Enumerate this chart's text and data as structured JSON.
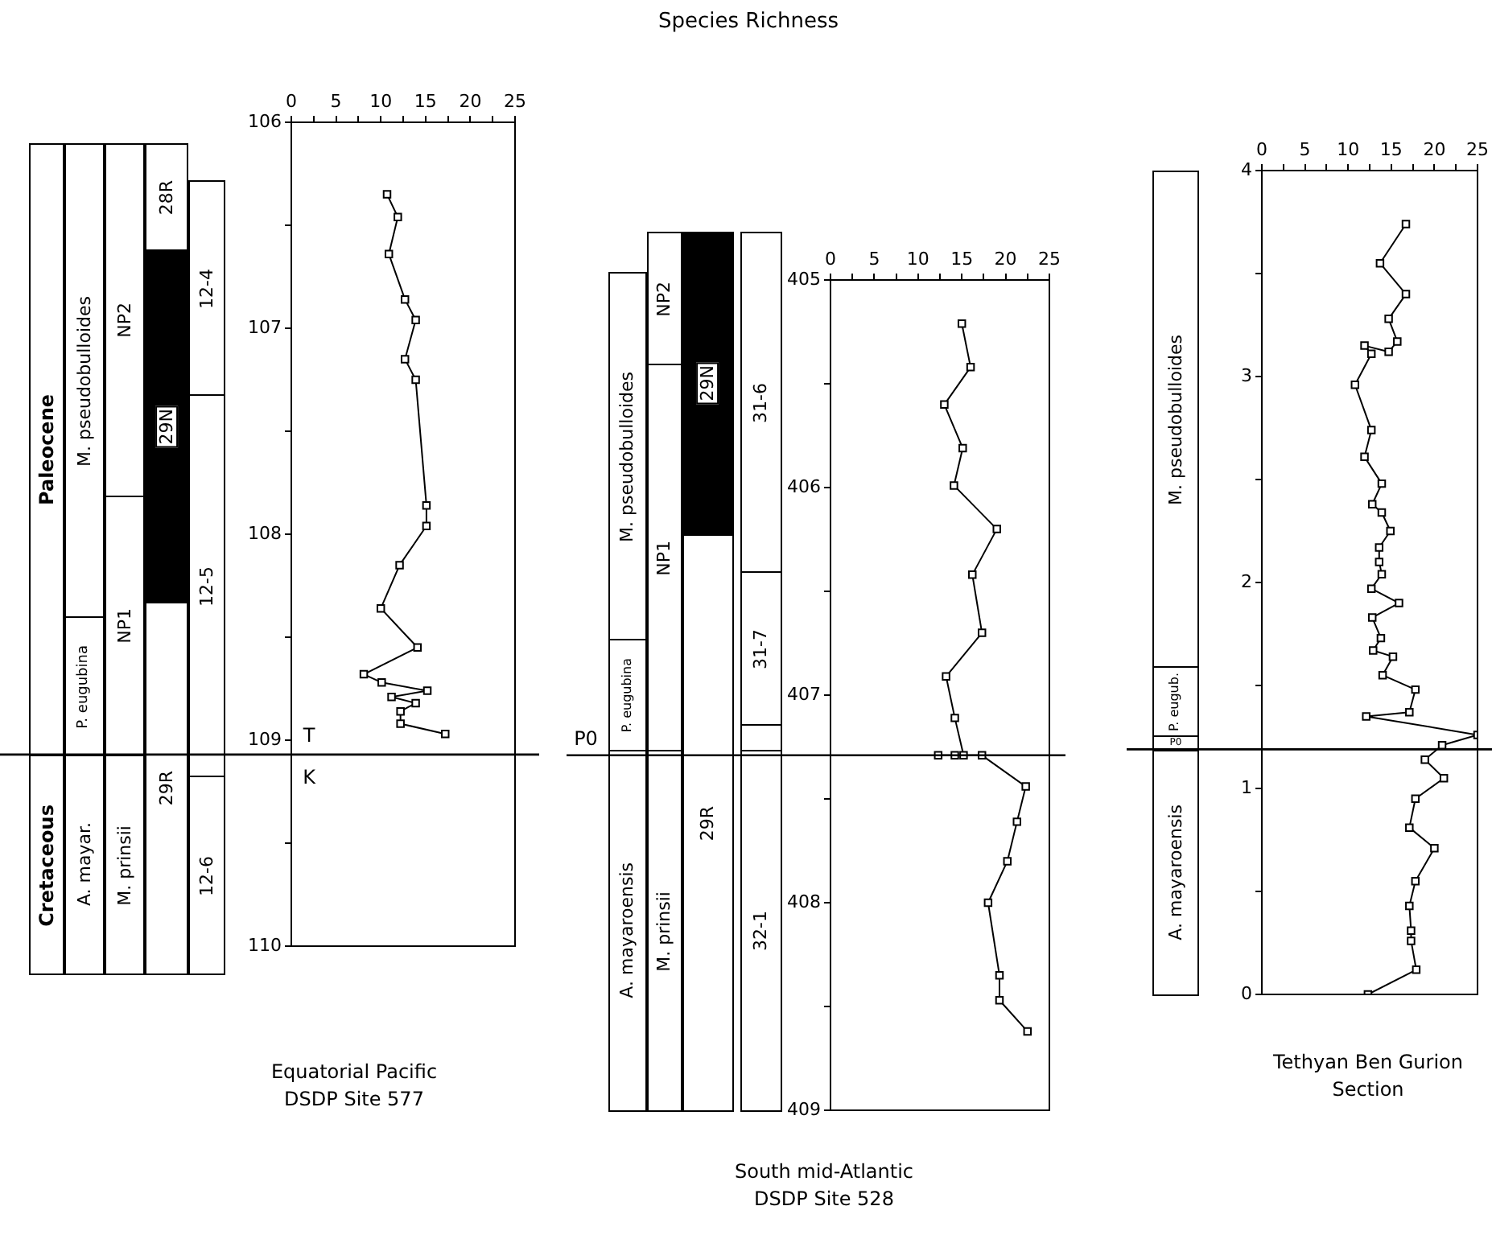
{
  "chart_data": [
    {
      "type": "line",
      "color": "#000000",
      "marker": "square",
      "line_style": "solid",
      "x": [
        10.7,
        11.9,
        10.9,
        12.7,
        13.9,
        12.7,
        13.9,
        15.1,
        15.1,
        12.1,
        10.0,
        14.1,
        8.1,
        10.1,
        15.2,
        11.2,
        13.9,
        12.2,
        12.2,
        17.2
      ],
      "values": [
        106.35,
        106.46,
        106.64,
        106.86,
        106.96,
        107.15,
        107.25,
        107.86,
        107.96,
        108.15,
        108.36,
        108.55,
        108.68,
        108.72,
        108.76,
        108.79,
        108.82,
        108.86,
        108.92,
        108.97
      ],
      "xlim": [
        0,
        25
      ],
      "xticks": [
        0,
        {
          "value": 2.5,
          "label": null
        },
        5,
        {
          "value": 7.5,
          "label": null
        },
        10,
        {
          "value": 12.5,
          "label": null
        },
        15,
        {
          "value": 17.5,
          "label": null
        },
        20,
        {
          "value": 22.5,
          "label": null
        },
        25
      ],
      "ylim": [
        110,
        106
      ],
      "yticks": [
        106,
        {
          "value": 106.5,
          "label": null
        },
        107,
        {
          "value": 107.5,
          "label": null
        },
        108,
        {
          "value": 108.5,
          "label": null
        },
        109,
        {
          "value": 109.5,
          "label": null
        },
        110
      ],
      "ref_lines": [
        {
          "axis": "y",
          "value": 109.07
        }
      ],
      "annotations": [
        "Paleocene",
        "Cretaceous",
        "M. pseudobulloides",
        "P. eugubina",
        "A. mayar.",
        "NP2",
        "NP1",
        "M. prinsii",
        "28R",
        "29N",
        "29R",
        "12-4",
        "12-5",
        "12-6",
        "T",
        "K",
        "Equatorial Pacific",
        "DSDP Site 577"
      ]
    },
    {
      "type": "line",
      "title": "Species Richness",
      "color": "#000000",
      "marker": "square",
      "line_style": "solid",
      "x": [
        15.0,
        16.0,
        13.0,
        15.1,
        14.1,
        19.0,
        16.2,
        17.3,
        13.2,
        14.2,
        15.2,
        12.3,
        14.2,
        17.3,
        22.3,
        21.3,
        20.2,
        18.0,
        19.3,
        19.3,
        22.5
      ],
      "values": [
        405.21,
        405.42,
        405.6,
        405.81,
        405.99,
        406.2,
        406.42,
        406.7,
        406.91,
        407.11,
        407.29,
        407.29,
        407.29,
        407.29,
        407.44,
        407.61,
        407.8,
        408.0,
        408.35,
        408.47,
        408.62
      ],
      "xlim": [
        0,
        25
      ],
      "xticks": [
        0,
        {
          "value": 2.5,
          "label": null
        },
        5,
        {
          "value": 7.5,
          "label": null
        },
        10,
        {
          "value": 12.5,
          "label": null
        },
        15,
        {
          "value": 17.5,
          "label": null
        },
        20,
        {
          "value": 22.5,
          "label": null
        },
        25
      ],
      "ylim": [
        409,
        405
      ],
      "yticks": [
        405,
        {
          "value": 405.5,
          "label": null
        },
        406,
        {
          "value": 406.5,
          "label": null
        },
        407,
        {
          "value": 407.5,
          "label": null
        },
        408,
        {
          "value": 408.5,
          "label": null
        },
        409
      ],
      "ref_lines": [
        {
          "axis": "y",
          "value": 407.29
        }
      ],
      "annotations": [
        "M. pseudobulloides",
        "P. eugubina",
        "A. mayaroensis",
        "NP2",
        "NP1",
        "M. prinsii",
        "29N",
        "29R",
        "31-6",
        "31-7",
        "32-1",
        "P0",
        "South mid-Atlantic",
        "DSDP Site 528"
      ]
    },
    {
      "type": "line",
      "color": "#000000",
      "marker": "square",
      "line_style": "solid",
      "x": [
        16.7,
        13.7,
        16.7,
        14.7,
        15.7,
        14.7,
        11.9,
        12.7,
        10.8,
        12.7,
        11.9,
        13.9,
        12.8,
        13.9,
        14.9,
        13.6,
        13.6,
        13.9,
        12.7,
        15.9,
        12.8,
        13.8,
        12.9,
        15.2,
        14.0,
        17.8,
        17.1,
        12.1,
        25.0,
        20.9,
        18.9,
        21.1,
        17.8,
        17.1,
        20.0,
        17.8,
        17.1,
        17.3,
        17.3,
        17.9,
        12.3
      ],
      "values": [
        3.74,
        3.55,
        3.4,
        3.28,
        3.17,
        3.12,
        3.15,
        3.11,
        2.96,
        2.74,
        2.61,
        2.48,
        2.38,
        2.34,
        2.25,
        2.17,
        2.1,
        2.04,
        1.97,
        1.9,
        1.83,
        1.73,
        1.67,
        1.64,
        1.55,
        1.48,
        1.37,
        1.35,
        1.26,
        1.21,
        1.14,
        1.05,
        0.95,
        0.81,
        0.71,
        0.55,
        0.43,
        0.31,
        0.26,
        0.12,
        0.0
      ],
      "xlim": [
        0,
        25
      ],
      "xticks": [
        0,
        {
          "value": 2.5,
          "label": null
        },
        5,
        {
          "value": 7.5,
          "label": null
        },
        10,
        {
          "value": 12.5,
          "label": null
        },
        15,
        {
          "value": 17.5,
          "label": null
        },
        20,
        {
          "value": 22.5,
          "label": null
        },
        25
      ],
      "ylim": [
        0,
        4
      ],
      "yticks": [
        0,
        {
          "value": 0.5,
          "label": null
        },
        1,
        {
          "value": 1.5,
          "label": null
        },
        2,
        {
          "value": 2.5,
          "label": null
        },
        3,
        {
          "value": 3.5,
          "label": null
        },
        4
      ],
      "ref_lines": [
        {
          "axis": "y",
          "value": 1.19
        }
      ],
      "annotations": [
        "M. pseudobulloides",
        "P. eugub.",
        "P0",
        "A. mayaroensis",
        "Tethyan Ben Gurion",
        "Section"
      ]
    }
  ]
}
